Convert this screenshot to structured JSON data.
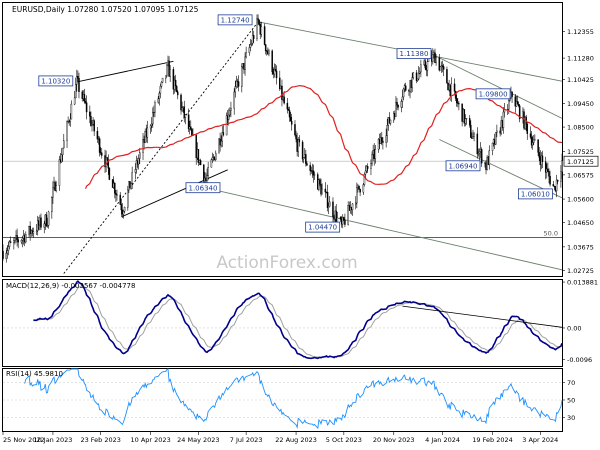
{
  "chart_data": [
    {
      "type": "candlestick",
      "title": "EURUSD,Daily  1.07280 1.07520 1.07095 1.07125",
      "symbol": "EURUSD",
      "timeframe": "Daily",
      "ohlc": {
        "open": 1.0728,
        "high": 1.0752,
        "low": 1.07095,
        "close": 1.07125
      },
      "watermark": "ActionForex.com",
      "y_ticks": [
        "1.12355",
        "1.11280",
        "1.10425",
        "1.09450",
        "1.08500",
        "1.07525",
        "1.06575",
        "1.05600",
        "1.04650",
        "1.03675",
        "1.02725"
      ],
      "y_range": [
        1.025,
        1.135
      ],
      "last_price_label": "1.07125",
      "annotations": [
        {
          "label": "1.10320",
          "date": "2023-02-01",
          "price": 1.1032
        },
        {
          "label": "1.12740",
          "date": "2023-07-18",
          "price": 1.1274
        },
        {
          "label": "1.06340",
          "date": "2023-05-31",
          "price": 1.0634
        },
        {
          "label": "1.04470",
          "date": "2023-10-03",
          "price": 1.0447
        },
        {
          "label": "1.11380",
          "date": "2023-12-28",
          "price": 1.1138
        },
        {
          "label": "1.06940",
          "date": "2024-02-13",
          "price": 1.0694
        },
        {
          "label": "1.09800",
          "date": "2024-03-08",
          "price": 1.098
        },
        {
          "label": "1.06010",
          "date": "2024-04-16",
          "price": 1.0601
        }
      ],
      "retracement_label": "50.0",
      "retracement_price": 1.0405
    },
    {
      "type": "line",
      "title": "MACD(12,26,9) -0.003567 -0.004778",
      "name": "MACD(12,26,9)",
      "values_label": "-0.003567 -0.004778",
      "y_ticks": [
        "0.013881",
        "0.00",
        "-0.0096"
      ],
      "y_range": [
        -0.0115,
        0.0145
      ]
    },
    {
      "type": "line",
      "title": "RSI(14) 45.9810",
      "name": "RSI(14)",
      "value": 45.981,
      "y_ticks": [
        "70",
        "50",
        "30"
      ],
      "y_range": [
        15,
        85
      ]
    }
  ],
  "x_ticks": [
    "25 Nov 2022",
    "10 Jan 2023",
    "23 Feb 2023",
    "10 Apr 2023",
    "24 May 2023",
    "7 Jul 2023",
    "22 Aug 2023",
    "5 Oct 2023",
    "20 Nov 2023",
    "4 Jan 2024",
    "19 Feb 2024",
    "3 Apr 2024"
  ],
  "colors": {
    "candle": "#000000",
    "moving_average": "#e02020",
    "macd": "#00008b",
    "signal": "#a0a0a0",
    "rsi": "#1e90ff",
    "trendline": "#000000",
    "channel": "#6b7f6b",
    "label_border": "#1e3c96",
    "label_text": "#1e3c96"
  }
}
